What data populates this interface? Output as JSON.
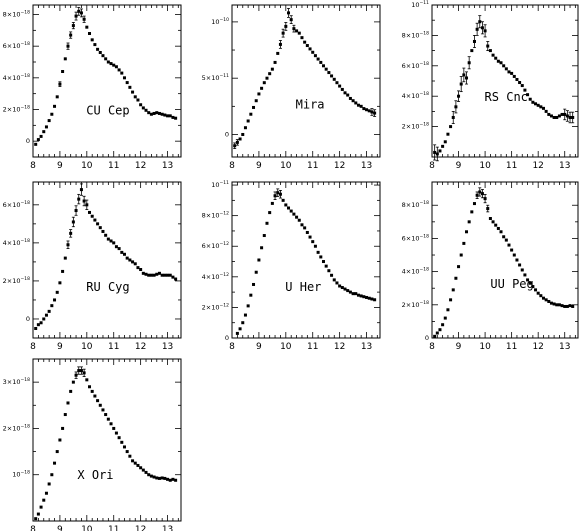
{
  "chart_data": [
    {
      "type": "scatter",
      "panel_label": "CU Cep",
      "x": [
        8.1,
        8.2,
        8.3,
        8.4,
        8.5,
        8.6,
        8.7,
        8.8,
        8.9,
        9.0,
        9.1,
        9.2,
        9.3,
        9.4,
        9.5,
        9.6,
        9.7,
        9.8,
        9.9,
        10.0,
        10.1,
        10.2,
        10.3,
        10.4,
        10.5,
        10.6,
        10.7,
        10.8,
        10.9,
        11.0,
        11.1,
        11.2,
        11.3,
        11.4,
        11.5,
        11.6,
        11.7,
        11.8,
        11.9,
        12.0,
        12.1,
        12.2,
        12.3,
        12.4,
        12.5,
        12.6,
        12.7,
        12.8,
        12.9,
        13.0,
        13.1,
        13.2,
        13.3
      ],
      "values": [
        -0.2,
        0.1,
        0.3,
        0.6,
        0.9,
        1.3,
        1.7,
        2.2,
        2.8,
        3.6,
        4.4,
        5.2,
        6.0,
        6.7,
        7.3,
        7.9,
        8.2,
        8.1,
        7.7,
        7.2,
        6.8,
        6.4,
        6.1,
        5.8,
        5.6,
        5.4,
        5.2,
        5.0,
        4.9,
        4.8,
        4.7,
        4.5,
        4.3,
        4.0,
        3.7,
        3.4,
        3.1,
        2.8,
        2.6,
        2.3,
        2.1,
        1.95,
        1.8,
        1.7,
        1.75,
        1.8,
        1.75,
        1.7,
        1.65,
        1.6,
        1.6,
        1.5,
        1.45
      ],
      "errors": [
        0,
        0,
        0,
        0,
        0,
        0,
        0,
        0,
        0,
        0.15,
        0,
        0,
        0.2,
        0.2,
        0.2,
        0.25,
        0.25,
        0.25,
        0.2,
        0,
        0,
        0,
        0,
        0,
        0,
        0,
        0,
        0,
        0,
        0,
        0,
        0,
        0,
        0,
        0,
        0,
        0,
        0,
        0,
        0,
        0,
        0,
        0,
        0,
        0,
        0,
        0,
        0,
        0,
        0,
        0,
        0,
        0
      ],
      "xlim": [
        8,
        13.5
      ],
      "ylim": [
        -1,
        8.6
      ],
      "xticks": [
        "8",
        "9",
        "10",
        "11",
        "12",
        "13"
      ],
      "yticks": [
        {
          "v": 0,
          "mantissa": "0",
          "exponent": ""
        },
        {
          "v": 2,
          "mantissa": "2×10",
          "exponent": "−18"
        },
        {
          "v": 4,
          "mantissa": "4×10",
          "exponent": "−18"
        },
        {
          "v": 6,
          "mantissa": "6×10",
          "exponent": "−18"
        },
        {
          "v": 8,
          "mantissa": "8×10",
          "exponent": "−18"
        }
      ],
      "xlabel": "",
      "ylabel": ""
    },
    {
      "type": "scatter",
      "panel_label": "Mira",
      "x": [
        8.1,
        8.2,
        8.3,
        8.4,
        8.5,
        8.6,
        8.7,
        8.8,
        8.9,
        9.0,
        9.1,
        9.2,
        9.3,
        9.4,
        9.5,
        9.6,
        9.7,
        9.8,
        9.9,
        10.0,
        10.1,
        10.2,
        10.3,
        10.4,
        10.5,
        10.6,
        10.7,
        10.8,
        10.9,
        11.0,
        11.1,
        11.2,
        11.3,
        11.4,
        11.5,
        11.6,
        11.7,
        11.8,
        11.9,
        12.0,
        12.1,
        12.2,
        12.3,
        12.4,
        12.5,
        12.6,
        12.7,
        12.8,
        12.9,
        13.0,
        13.1,
        13.2,
        13.3
      ],
      "values": [
        -1.0,
        -0.7,
        -0.4,
        0.0,
        0.6,
        1.2,
        1.8,
        2.4,
        3.0,
        3.6,
        4.1,
        4.6,
        5.0,
        5.4,
        5.8,
        6.4,
        7.2,
        8.0,
        9.0,
        9.6,
        10.8,
        10.2,
        9.4,
        9.2,
        9.0,
        8.6,
        8.2,
        7.9,
        7.6,
        7.3,
        7.0,
        6.7,
        6.4,
        6.1,
        5.8,
        5.5,
        5.2,
        4.9,
        4.6,
        4.3,
        4.0,
        3.7,
        3.5,
        3.2,
        3.0,
        2.8,
        2.6,
        2.5,
        2.3,
        2.2,
        2.1,
        2.0,
        1.9
      ],
      "errors": [
        0.25,
        0.25,
        0,
        0,
        0,
        0,
        0,
        0,
        0,
        0,
        0,
        0,
        0,
        0,
        0,
        0,
        0,
        0.35,
        0.35,
        0.35,
        0.4,
        0.35,
        0.3,
        0,
        0,
        0,
        0,
        0,
        0,
        0,
        0,
        0,
        0,
        0,
        0,
        0,
        0,
        0,
        0,
        0,
        0,
        0,
        0,
        0,
        0,
        0,
        0,
        0,
        0,
        0,
        0,
        0.3,
        0.3
      ],
      "xlim": [
        8,
        13.5
      ],
      "ylim": [
        -2,
        11.5
      ],
      "xticks": [
        "8",
        "9",
        "10",
        "11",
        "12",
        "13"
      ],
      "yticks": [
        {
          "v": 0,
          "mantissa": "0",
          "exponent": ""
        },
        {
          "v": 5,
          "mantissa": "5×10",
          "exponent": "−11"
        },
        {
          "v": 10,
          "mantissa": "10",
          "exponent": "−10"
        }
      ],
      "xlabel": "",
      "ylabel": ""
    },
    {
      "type": "scatter",
      "panel_label": "RS Cnc",
      "x": [
        8.1,
        8.2,
        8.3,
        8.4,
        8.5,
        8.6,
        8.7,
        8.8,
        8.9,
        9.0,
        9.1,
        9.2,
        9.3,
        9.4,
        9.5,
        9.6,
        9.7,
        9.8,
        9.9,
        10.0,
        10.1,
        10.2,
        10.3,
        10.4,
        10.5,
        10.6,
        10.7,
        10.8,
        10.9,
        11.0,
        11.1,
        11.2,
        11.3,
        11.4,
        11.5,
        11.6,
        11.7,
        11.8,
        11.9,
        12.0,
        12.1,
        12.2,
        12.3,
        12.4,
        12.5,
        12.6,
        12.7,
        12.8,
        12.9,
        13.0,
        13.1,
        13.2,
        13.3
      ],
      "values": [
        0.3,
        0.2,
        0.4,
        0.7,
        1.0,
        1.5,
        2.0,
        2.6,
        3.3,
        4.0,
        4.8,
        5.4,
        5.2,
        6.2,
        7.0,
        7.6,
        8.4,
        8.9,
        8.5,
        8.3,
        7.3,
        7.0,
        6.7,
        6.5,
        6.3,
        6.2,
        6.0,
        5.8,
        5.6,
        5.5,
        5.3,
        5.1,
        4.9,
        4.7,
        4.4,
        4.1,
        3.8,
        3.6,
        3.5,
        3.4,
        3.3,
        3.2,
        3.0,
        2.8,
        2.7,
        2.6,
        2.6,
        2.7,
        2.8,
        2.8,
        2.7,
        2.6,
        2.6
      ],
      "errors": [
        0.5,
        0.45,
        0,
        0,
        0,
        0,
        0,
        0.4,
        0.4,
        0.35,
        0.5,
        0.45,
        0.4,
        0.4,
        0,
        0.4,
        0.4,
        0.4,
        0.4,
        0.4,
        0.3,
        0,
        0,
        0,
        0,
        0,
        0,
        0,
        0,
        0,
        0,
        0,
        0,
        0,
        0,
        0,
        0,
        0,
        0,
        0,
        0,
        0,
        0,
        0,
        0,
        0,
        0,
        0,
        0,
        0.35,
        0.35,
        0.35,
        0.35
      ],
      "xlim": [
        8,
        13.5
      ],
      "ylim": [
        0,
        10
      ],
      "xticks": [
        "8",
        "9",
        "10",
        "11",
        "12",
        "13"
      ],
      "yticks": [
        {
          "v": 2,
          "mantissa": "2×10",
          "exponent": "−18"
        },
        {
          "v": 4,
          "mantissa": "4×10",
          "exponent": "−18"
        },
        {
          "v": 6,
          "mantissa": "6×10",
          "exponent": "−18"
        },
        {
          "v": 8,
          "mantissa": "8×10",
          "exponent": "−18"
        },
        {
          "v": 10,
          "mantissa": "10",
          "exponent": "−11"
        }
      ],
      "xlabel": "",
      "ylabel": ""
    },
    {
      "type": "scatter",
      "panel_label": "RU Cyg",
      "x": [
        8.1,
        8.2,
        8.3,
        8.4,
        8.5,
        8.6,
        8.7,
        8.8,
        8.9,
        9.0,
        9.1,
        9.2,
        9.3,
        9.4,
        9.5,
        9.6,
        9.7,
        9.8,
        9.9,
        10.0,
        10.1,
        10.2,
        10.3,
        10.4,
        10.5,
        10.6,
        10.7,
        10.8,
        10.9,
        11.0,
        11.1,
        11.2,
        11.3,
        11.4,
        11.5,
        11.6,
        11.7,
        11.8,
        11.9,
        12.0,
        12.1,
        12.2,
        12.3,
        12.4,
        12.5,
        12.6,
        12.7,
        12.8,
        12.9,
        13.0,
        13.1,
        13.2,
        13.3
      ],
      "values": [
        -0.5,
        -0.3,
        -0.2,
        0.0,
        0.2,
        0.4,
        0.7,
        1.0,
        1.4,
        1.9,
        2.5,
        3.2,
        3.9,
        4.5,
        5.1,
        5.7,
        6.3,
        6.8,
        6.2,
        6.0,
        5.6,
        5.4,
        5.2,
        5.0,
        4.8,
        4.6,
        4.4,
        4.2,
        4.1,
        4.0,
        3.8,
        3.7,
        3.5,
        3.4,
        3.2,
        3.1,
        3.0,
        2.9,
        2.7,
        2.6,
        2.4,
        2.35,
        2.3,
        2.3,
        2.3,
        2.35,
        2.4,
        2.3,
        2.3,
        2.3,
        2.3,
        2.2,
        2.1
      ],
      "errors": [
        0,
        0,
        0,
        0,
        0,
        0,
        0,
        0,
        0,
        0,
        0,
        0,
        0.2,
        0.2,
        0.25,
        0.25,
        0.25,
        0.3,
        0.25,
        0.25,
        0,
        0,
        0,
        0,
        0,
        0,
        0,
        0,
        0,
        0,
        0,
        0,
        0,
        0,
        0,
        0,
        0,
        0,
        0,
        0,
        0,
        0,
        0,
        0,
        0,
        0,
        0,
        0,
        0,
        0,
        0,
        0,
        0
      ],
      "xlim": [
        8,
        13.5
      ],
      "ylim": [
        -1,
        7.2
      ],
      "xticks": [
        "8",
        "9",
        "10",
        "11",
        "12",
        "13"
      ],
      "yticks": [
        {
          "v": 0,
          "mantissa": "0",
          "exponent": ""
        },
        {
          "v": 2,
          "mantissa": "2×10",
          "exponent": "−18"
        },
        {
          "v": 4,
          "mantissa": "4×10",
          "exponent": "−18"
        },
        {
          "v": 6,
          "mantissa": "6×10",
          "exponent": "−18"
        }
      ],
      "xlabel": "",
      "ylabel": ""
    },
    {
      "type": "scatter",
      "panel_label": "U Her",
      "x": [
        8.2,
        8.3,
        8.4,
        8.5,
        8.6,
        8.7,
        8.8,
        8.9,
        9.0,
        9.1,
        9.2,
        9.3,
        9.4,
        9.5,
        9.6,
        9.7,
        9.8,
        9.9,
        10.0,
        10.1,
        10.2,
        10.3,
        10.4,
        10.5,
        10.6,
        10.7,
        10.8,
        10.9,
        11.0,
        11.1,
        11.2,
        11.3,
        11.4,
        11.5,
        11.6,
        11.7,
        11.8,
        11.9,
        12.0,
        12.1,
        12.2,
        12.3,
        12.4,
        12.5,
        12.6,
        12.7,
        12.8,
        12.9,
        13.0,
        13.1,
        13.2,
        13.3
      ],
      "values": [
        0.3,
        0.6,
        1.0,
        1.5,
        2.1,
        2.8,
        3.5,
        4.3,
        5.1,
        5.9,
        6.7,
        7.5,
        8.2,
        8.8,
        9.3,
        9.5,
        9.4,
        9.0,
        8.7,
        8.5,
        8.3,
        8.1,
        7.9,
        7.7,
        7.4,
        7.2,
        6.9,
        6.6,
        6.3,
        6.0,
        5.6,
        5.3,
        5.0,
        4.7,
        4.4,
        4.1,
        3.8,
        3.6,
        3.4,
        3.3,
        3.2,
        3.1,
        3.0,
        2.9,
        2.9,
        2.8,
        2.75,
        2.7,
        2.65,
        2.6,
        2.55,
        2.5
      ],
      "errors": [
        0,
        0,
        0,
        0,
        0,
        0,
        0,
        0,
        0,
        0,
        0,
        0,
        0,
        0,
        0.25,
        0.25,
        0.25,
        0,
        0,
        0,
        0,
        0,
        0,
        0,
        0,
        0,
        0,
        0,
        0,
        0,
        0,
        0,
        0,
        0,
        0,
        0,
        0,
        0,
        0,
        0,
        0,
        0,
        0,
        0,
        0,
        0,
        0,
        0,
        0,
        0,
        0,
        0
      ],
      "xlim": [
        8,
        13.5
      ],
      "ylim": [
        0,
        10.2
      ],
      "xticks": [
        "8",
        "9",
        "10",
        "11",
        "12",
        "13"
      ],
      "yticks": [
        {
          "v": 0,
          "mantissa": "0",
          "exponent": ""
        },
        {
          "v": 2,
          "mantissa": "2×10",
          "exponent": "−12"
        },
        {
          "v": 4,
          "mantissa": "4×10",
          "exponent": "−12"
        },
        {
          "v": 6,
          "mantissa": "6×10",
          "exponent": "−12"
        },
        {
          "v": 8,
          "mantissa": "8×10",
          "exponent": "−12"
        },
        {
          "v": 10,
          "mantissa": "10",
          "exponent": "−11"
        }
      ],
      "xlabel": "",
      "ylabel": ""
    },
    {
      "type": "scatter",
      "panel_label": "UU Peg",
      "x": [
        8.1,
        8.2,
        8.3,
        8.4,
        8.5,
        8.6,
        8.7,
        8.8,
        8.9,
        9.0,
        9.1,
        9.2,
        9.3,
        9.4,
        9.5,
        9.6,
        9.7,
        9.8,
        9.9,
        10.0,
        10.1,
        10.2,
        10.3,
        10.4,
        10.5,
        10.6,
        10.7,
        10.8,
        10.9,
        11.0,
        11.1,
        11.2,
        11.3,
        11.4,
        11.5,
        11.6,
        11.7,
        11.8,
        11.9,
        12.0,
        12.1,
        12.2,
        12.3,
        12.4,
        12.5,
        12.6,
        12.7,
        12.8,
        12.9,
        13.0,
        13.1,
        13.2,
        13.3
      ],
      "values": [
        0.1,
        0.3,
        0.5,
        0.8,
        1.2,
        1.7,
        2.3,
        2.9,
        3.6,
        4.3,
        5.0,
        5.7,
        6.4,
        7.0,
        7.6,
        8.1,
        8.6,
        8.8,
        8.7,
        8.4,
        7.8,
        7.2,
        7.0,
        6.8,
        6.6,
        6.4,
        6.1,
        5.9,
        5.6,
        5.3,
        5.0,
        4.7,
        4.4,
        4.1,
        3.8,
        3.5,
        3.3,
        3.1,
        2.9,
        2.7,
        2.55,
        2.4,
        2.3,
        2.2,
        2.1,
        2.05,
        2.0,
        2.0,
        1.95,
        1.9,
        1.9,
        1.95,
        1.9
      ],
      "errors": [
        0,
        0,
        0,
        0,
        0,
        0,
        0,
        0,
        0,
        0,
        0,
        0,
        0,
        0,
        0,
        0,
        0.2,
        0.25,
        0.25,
        0.25,
        0.2,
        0,
        0,
        0,
        0,
        0,
        0,
        0,
        0,
        0,
        0,
        0,
        0,
        0,
        0,
        0,
        0,
        0,
        0,
        0,
        0,
        0,
        0,
        0,
        0,
        0,
        0,
        0,
        0,
        0,
        0,
        0,
        0
      ],
      "xlim": [
        8,
        13.5
      ],
      "ylim": [
        0,
        9.4
      ],
      "xticks": [
        "8",
        "9",
        "10",
        "11",
        "12",
        "13"
      ],
      "yticks": [
        {
          "v": 0,
          "mantissa": "0",
          "exponent": ""
        },
        {
          "v": 2,
          "mantissa": "2×10",
          "exponent": "−18"
        },
        {
          "v": 4,
          "mantissa": "4×10",
          "exponent": "−18"
        },
        {
          "v": 6,
          "mantissa": "6×10",
          "exponent": "−18"
        },
        {
          "v": 8,
          "mantissa": "8×10",
          "exponent": "−18"
        }
      ],
      "xlabel": "",
      "ylabel": ""
    },
    {
      "type": "scatter",
      "panel_label": "X Ori",
      "x": [
        8.1,
        8.2,
        8.3,
        8.4,
        8.5,
        8.6,
        8.7,
        8.8,
        8.9,
        9.0,
        9.1,
        9.2,
        9.3,
        9.4,
        9.5,
        9.6,
        9.7,
        9.8,
        9.9,
        10.0,
        10.1,
        10.2,
        10.3,
        10.4,
        10.5,
        10.6,
        10.7,
        10.8,
        10.9,
        11.0,
        11.1,
        11.2,
        11.3,
        11.4,
        11.5,
        11.6,
        11.7,
        11.8,
        11.9,
        12.0,
        12.1,
        12.2,
        12.3,
        12.4,
        12.5,
        12.6,
        12.7,
        12.8,
        12.9,
        13.0,
        13.1,
        13.2,
        13.3
      ],
      "values": [
        0.05,
        0.15,
        0.3,
        0.45,
        0.6,
        0.8,
        1.0,
        1.25,
        1.5,
        1.75,
        2.0,
        2.3,
        2.55,
        2.8,
        3.0,
        3.15,
        3.25,
        3.25,
        3.2,
        3.05,
        2.9,
        2.8,
        2.7,
        2.6,
        2.5,
        2.4,
        2.3,
        2.2,
        2.1,
        2.0,
        1.9,
        1.8,
        1.7,
        1.6,
        1.5,
        1.4,
        1.3,
        1.25,
        1.2,
        1.15,
        1.1,
        1.05,
        1.0,
        0.97,
        0.95,
        0.93,
        0.92,
        0.93,
        0.92,
        0.9,
        0.88,
        0.9,
        0.88
      ],
      "errors": [
        0,
        0,
        0,
        0,
        0,
        0,
        0,
        0,
        0,
        0,
        0,
        0,
        0,
        0,
        0,
        0.07,
        0.08,
        0.08,
        0.08,
        0,
        0,
        0,
        0,
        0,
        0,
        0,
        0,
        0,
        0,
        0,
        0,
        0,
        0,
        0,
        0,
        0,
        0,
        0,
        0,
        0,
        0,
        0,
        0,
        0,
        0,
        0,
        0,
        0,
        0,
        0,
        0,
        0,
        0
      ],
      "xlim": [
        8,
        13.5
      ],
      "ylim": [
        0,
        3.5
      ],
      "xticks": [
        "8",
        "9",
        "10",
        "11",
        "12",
        "13"
      ],
      "yticks": [
        {
          "v": 1,
          "mantissa": "10",
          "exponent": "−18"
        },
        {
          "v": 2,
          "mantissa": "2×10",
          "exponent": "−18"
        },
        {
          "v": 3,
          "mantissa": "3×10",
          "exponent": "−18"
        }
      ],
      "xlabel": "",
      "ylabel": ""
    }
  ]
}
